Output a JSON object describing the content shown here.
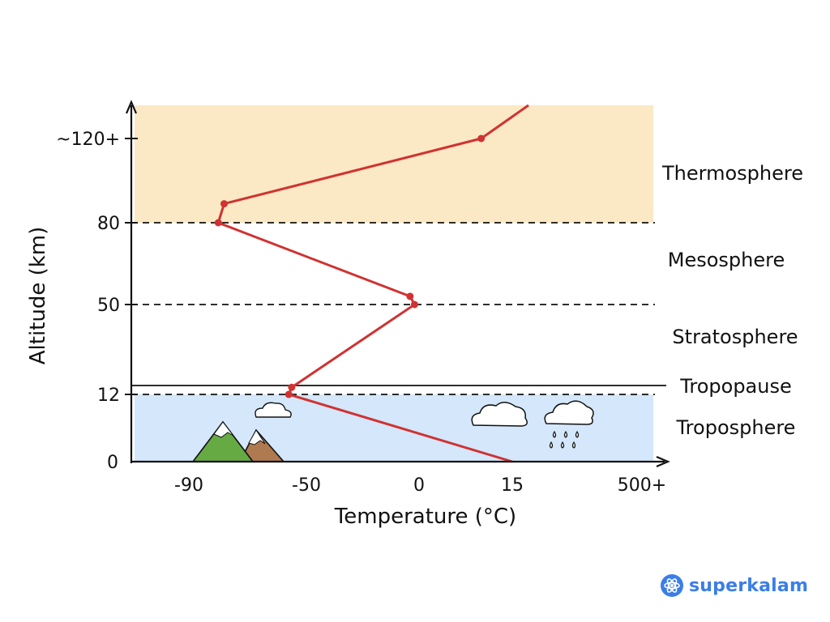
{
  "colors": {
    "thermosphere": "#fbe8c4",
    "troposphere": "#d4e7fb",
    "profile": "#d03232",
    "axis": "#111111",
    "brand": "#3b7ee8",
    "mountain_green": "#66aa44",
    "mountain_brown": "#b07a50",
    "snow": "#ffffff"
  },
  "chart_data": {
    "type": "line",
    "title": "",
    "xlabel": "Temperature (°C)",
    "ylabel": "Altitude (km)",
    "x_ticks": [
      "-90",
      "-50",
      "0",
      "15",
      "500+"
    ],
    "y_ticks": [
      "0",
      "12",
      "50",
      "80",
      "~120+"
    ],
    "layers": [
      {
        "name": "Thermosphere",
        "from_km": 80,
        "to_km": "120+"
      },
      {
        "name": "Mesosphere",
        "from_km": 50,
        "to_km": 80
      },
      {
        "name": "Stratosphere",
        "from_km": 12,
        "to_km": 50
      },
      {
        "name": "Tropopause",
        "at_km": 12
      },
      {
        "name": "Troposphere",
        "from_km": 0,
        "to_km": 12
      }
    ],
    "profile": [
      {
        "temp": "15",
        "alt": "0"
      },
      {
        "temp": "-56",
        "alt": "12",
        "marked": true
      },
      {
        "temp": "-55",
        "alt": "15",
        "marked": true
      },
      {
        "temp": "-2",
        "alt": "50",
        "marked": true
      },
      {
        "temp": "-4",
        "alt": "53",
        "marked": true
      },
      {
        "temp": "-80",
        "alt": "80",
        "marked": true
      },
      {
        "temp": "-78",
        "alt": "89",
        "marked": true
      },
      {
        "temp": "10",
        "alt": "120",
        "marked": true
      },
      {
        "temp": "above 15",
        "alt": "above 120"
      }
    ]
  },
  "brand": {
    "name": "superkalam"
  }
}
